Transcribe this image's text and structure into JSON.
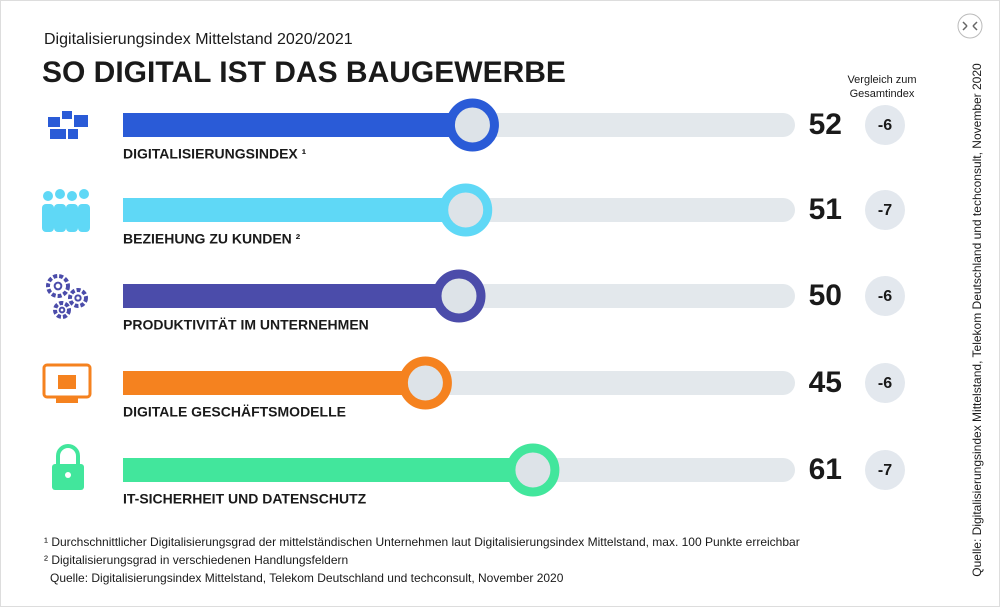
{
  "chart_data": {
    "type": "bar",
    "subtitle": "Digitalisierungsindex Mittelstand 2020/2021",
    "title": "SO DIGITAL IST DAS BAUGEWERBE",
    "categories": [
      "DIGITALISIERUNGSINDEX ¹",
      "BEZIEHUNG ZU KUNDEN ²",
      "PRODUKTIVITÄT IM UNTERNEHMEN",
      "DIGITALE GESCHÄFTSMODELLE",
      "IT-SICHERHEIT UND DATENSCHUTZ"
    ],
    "values": [
      52,
      51,
      50,
      45,
      61
    ],
    "colors": [
      "#2a5bd7",
      "#5fd8f6",
      "#4b4caa",
      "#f5821f",
      "#42e69c"
    ],
    "xlim": [
      0,
      100
    ],
    "comparison": {
      "title": "Vergleich zum Gesamtindex",
      "values": [
        -6,
        -7,
        -6,
        -6,
        -7
      ]
    },
    "footnotes": [
      "¹ Durchschnittlicher Digitalisierungsgrad der mittelständischen Unternehmen laut Digitalisierungsindex Mittelstand, max. 100 Punkte erreichbar",
      "² Digitalisierungsgrad in verschiedenen Handlungsfeldern",
      "Quelle: Digitalisierungsindex Mittelstand, Telekom Deutschland und techconsult, November 2020"
    ],
    "side_source": "Quelle: Digitalisierungsindex Mittelstand, Telekom Deutschland und techconsult, November 2020"
  }
}
